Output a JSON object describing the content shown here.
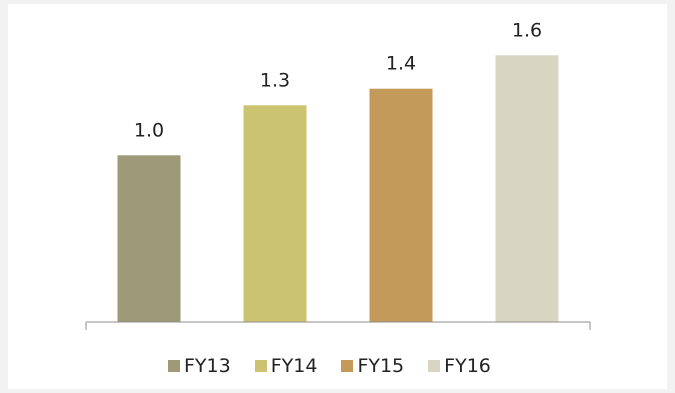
{
  "chart_data": {
    "type": "bar",
    "categories": [
      "FY13",
      "FY14",
      "FY15",
      "FY16"
    ],
    "values": [
      1.0,
      1.3,
      1.4,
      1.6
    ],
    "data_labels": [
      "1.0",
      "1.3",
      "1.4",
      "1.6"
    ],
    "colors": [
      "#9e9a78",
      "#ccc370",
      "#c49a5a",
      "#d8d5c2"
    ],
    "title": "",
    "xlabel": "",
    "ylabel": "",
    "ylim": [
      0,
      1.8
    ],
    "grid": false,
    "legend_position": "bottom"
  },
  "legend": {
    "items": [
      {
        "label": "FY13",
        "color": "#9e9a78"
      },
      {
        "label": "FY14",
        "color": "#ccc370"
      },
      {
        "label": "FY15",
        "color": "#c49a5a"
      },
      {
        "label": "FY16",
        "color": "#d8d5c2"
      }
    ]
  }
}
